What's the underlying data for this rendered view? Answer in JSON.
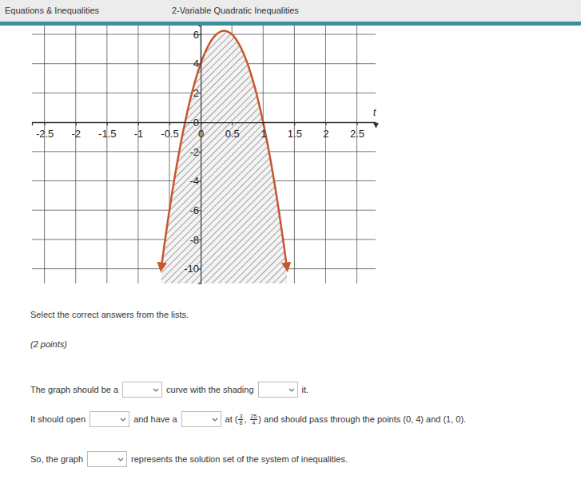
{
  "header": {
    "subject": "Equations & Inequalities",
    "lesson": "2-Variable Quadratic Inequalities"
  },
  "chart_data": {
    "type": "line",
    "xlabel": "t",
    "x": [
      -0.63,
      -0.5,
      -0.375,
      -0.25,
      -0.125,
      0,
      0.125,
      0.25,
      0.375,
      0.5,
      0.625,
      0.75,
      0.875,
      1,
      1.125,
      1.25,
      1.38
    ],
    "series": [
      {
        "name": "curve",
        "type": "area",
        "color": "#c8562e",
        "values": [
          -9.9,
          -6,
          -2.75,
          0,
          2.25,
          4,
          5.25,
          6,
          6.25,
          6,
          5.25,
          4,
          2.25,
          0,
          -2.75,
          -6,
          -9.9
        ]
      }
    ],
    "xlim": [
      -2.7,
      2.8
    ],
    "ylim": [
      -11,
      6.6
    ],
    "xticks": [
      -2.5,
      -2,
      -1.5,
      -1,
      -0.5,
      0,
      0.5,
      1,
      1.5,
      2,
      2.5
    ],
    "yticks": [
      -10,
      -8,
      -6,
      -4,
      -2,
      0,
      2,
      4,
      6
    ],
    "grid": true
  },
  "question": {
    "instruction": "Select the correct answers from the lists.",
    "points": "(2 points)",
    "sentences": [
      [
        [
          "The graph should be a"
        ],
        [
          "curve with the shading"
        ],
        [
          "it."
        ]
      ],
      [
        [
          "It should open"
        ],
        [
          "and have a"
        ],
        [
          "at (",
          {
            "num": "3",
            "den": "8"
          },
          ", ",
          {
            "num": "25",
            "den": "4"
          },
          ") and should pass through the points (0, 4) and (1, 0)."
        ]
      ],
      [
        [
          "So, the graph"
        ],
        [
          "represents the solution set of the system of inequalities."
        ]
      ]
    ]
  }
}
